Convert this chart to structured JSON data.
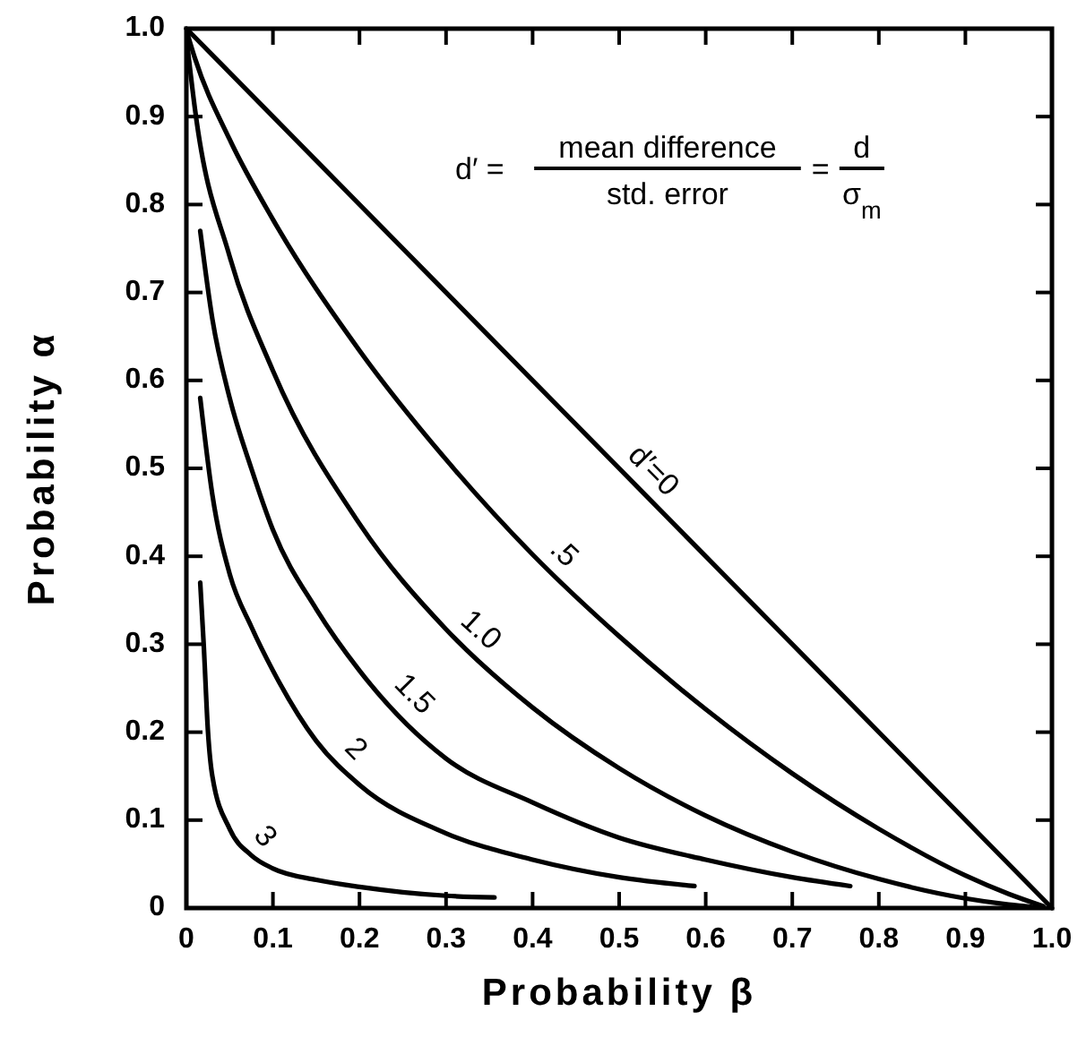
{
  "chart_data": {
    "type": "line",
    "xlabel": "Probability β",
    "ylabel": "Probability α",
    "xlim": [
      0,
      1
    ],
    "ylim": [
      0,
      1
    ],
    "xticks": [
      0,
      0.1,
      0.2,
      0.3,
      0.4,
      0.5,
      0.6,
      0.7,
      0.8,
      0.9,
      {
        "value": 1,
        "label": "1.0"
      }
    ],
    "yticks": [
      0,
      0.1,
      0.2,
      0.3,
      0.4,
      0.5,
      0.6,
      0.7,
      0.8,
      0.9,
      {
        "value": 1,
        "label": "1.0"
      }
    ],
    "grid": false,
    "marker": "none",
    "line_style": "solid",
    "annotations": [
      "d′ =",
      "mean difference",
      "std. error",
      "=",
      "d",
      "σ$_{m}$"
    ],
    "series": [
      {
        "name": "d′=0",
        "color": "#000000",
        "x": [
          0,
          1
        ],
        "values": [
          1,
          0
        ]
      },
      {
        "name": ".5",
        "color": "#000000",
        "x": [
          0.001,
          0.01,
          0.05,
          0.1,
          0.2,
          0.3,
          0.4,
          0.5,
          0.6,
          0.7,
          0.8,
          0.9,
          0.95,
          0.99
        ],
        "values": [
          0.995,
          0.966,
          0.874,
          0.783,
          0.634,
          0.51,
          0.402,
          0.309,
          0.226,
          0.153,
          0.09,
          0.037,
          0.016,
          0.002
        ]
      },
      {
        "name": "1.0",
        "color": "#000000",
        "x": [
          0.001,
          0.01,
          0.05,
          0.1,
          0.2,
          0.3,
          0.4,
          0.5,
          0.6,
          0.7,
          0.8,
          0.9,
          0.95,
          0.98
        ],
        "values": [
          0.982,
          0.908,
          0.741,
          0.611,
          0.437,
          0.317,
          0.228,
          0.159,
          0.105,
          0.064,
          0.033,
          0.011,
          0.004,
          0.001
        ]
      },
      {
        "name": "1.5",
        "color": "#000000",
        "x": [
          0.016,
          0.03,
          0.05,
          0.075,
          0.1,
          0.15,
          0.2,
          0.3,
          0.4,
          0.5,
          0.6,
          0.7,
          0.767
        ],
        "values": [
          0.77,
          0.67,
          0.58,
          0.5,
          0.43,
          0.34,
          0.27,
          0.17,
          0.12,
          0.08,
          0.055,
          0.035,
          0.025
        ]
      },
      {
        "name": "2",
        "color": "#000000",
        "x": [
          0.016,
          0.03,
          0.05,
          0.075,
          0.1,
          0.15,
          0.2,
          0.3,
          0.4,
          0.5,
          0.587
        ],
        "values": [
          0.58,
          0.47,
          0.38,
          0.32,
          0.27,
          0.19,
          0.14,
          0.085,
          0.055,
          0.035,
          0.025
        ]
      },
      {
        "name": "3",
        "color": "#000000",
        "x": [
          0.016,
          0.02,
          0.025,
          0.03,
          0.05,
          0.075,
          0.1,
          0.15,
          0.2,
          0.25,
          0.3,
          0.356
        ],
        "values": [
          0.37,
          0.3,
          0.2,
          0.15,
          0.09,
          0.06,
          0.045,
          0.032,
          0.024,
          0.018,
          0.014,
          0.012
        ]
      }
    ]
  }
}
